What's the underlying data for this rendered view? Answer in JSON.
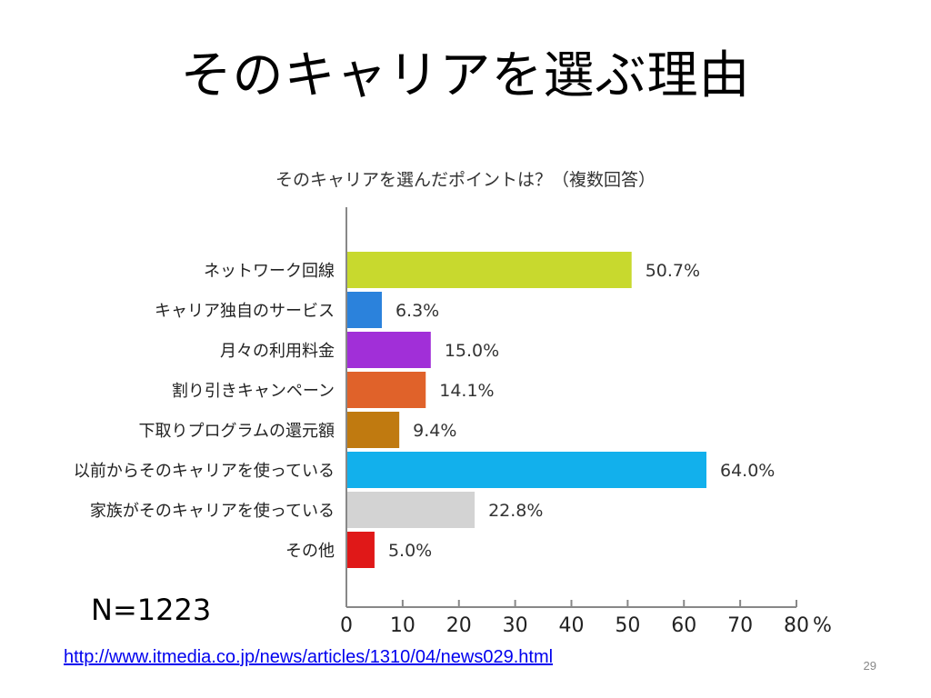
{
  "slide": {
    "title": "そのキャリアを選ぶ理由",
    "sample_size": "N=1223",
    "source_url": "http://www.itmedia.co.jp/news/articles/1310/04/news029.html",
    "page_number": "29"
  },
  "chart_data": {
    "type": "bar",
    "orientation": "horizontal",
    "title": "そのキャリアを選んだポイントは？（複数回答）",
    "categories": [
      "ネットワーク回線",
      "キャリア独自のサービス",
      "月々の利用料金",
      "割り引きキャンペーン",
      "下取りプログラムの還元額",
      "以前からそのキャリアを使っている",
      "家族がそのキャリアを使っている",
      "その他"
    ],
    "values": [
      50.7,
      6.3,
      15.0,
      14.1,
      9.4,
      64.0,
      22.8,
      5.0
    ],
    "value_labels": [
      "50.7%",
      "6.3%",
      "15.0%",
      "14.1%",
      "9.4%",
      "64.0%",
      "22.8%",
      "5.0%"
    ],
    "colors": [
      "#c8d92e",
      "#2b82dc",
      "#a12fd8",
      "#e0622a",
      "#c07a10",
      "#12b0ec",
      "#d3d3d3",
      "#e01818"
    ],
    "xlim": [
      0,
      80
    ],
    "xticks": [
      "0",
      "10",
      "20",
      "30",
      "40",
      "50",
      "60",
      "70",
      "80"
    ],
    "x_unit": "%",
    "grid": false
  }
}
